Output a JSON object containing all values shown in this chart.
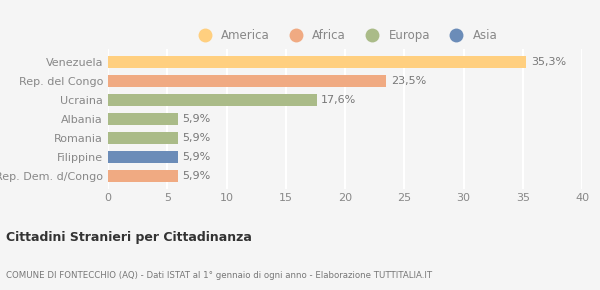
{
  "categories": [
    "Venezuela",
    "Rep. del Congo",
    "Ucraina",
    "Albania",
    "Romania",
    "Filippine",
    "Rep. Dem. d/Congo"
  ],
  "values": [
    35.3,
    23.5,
    17.6,
    5.9,
    5.9,
    5.9,
    5.9
  ],
  "labels": [
    "35,3%",
    "23,5%",
    "17,6%",
    "5,9%",
    "5,9%",
    "5,9%",
    "5,9%"
  ],
  "colors": [
    "#FFCF7F",
    "#F0AA82",
    "#AABB88",
    "#AABB88",
    "#AABB88",
    "#6B8CB8",
    "#F0AA82"
  ],
  "legend": [
    {
      "label": "America",
      "color": "#FFCF7F"
    },
    {
      "label": "Africa",
      "color": "#F0AA82"
    },
    {
      "label": "Europa",
      "color": "#AABB88"
    },
    {
      "label": "Asia",
      "color": "#6B8CB8"
    }
  ],
  "xlim": [
    0,
    40
  ],
  "xticks": [
    0,
    5,
    10,
    15,
    20,
    25,
    30,
    35,
    40
  ],
  "title_bold": "Cittadini Stranieri per Cittadinanza",
  "subtitle": "COMUNE DI FONTECCHIO (AQ) - Dati ISTAT al 1° gennaio di ogni anno - Elaborazione TUTTITALIA.IT",
  "background_color": "#f5f5f5",
  "bar_height": 0.65,
  "label_color": "#777777",
  "grid_color": "#ffffff",
  "ytick_color": "#888888",
  "xtick_color": "#888888"
}
